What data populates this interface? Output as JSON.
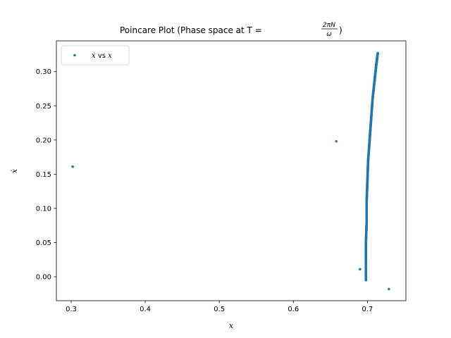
{
  "chart_data": {
    "type": "scatter",
    "title_prefix": "Poincare Plot (Phase space at T = ",
    "title_frac_num": "2πN",
    "title_frac_den": "ω",
    "title_suffix": ")",
    "xlabel": "x",
    "ylabel": "ẋ",
    "xlim": [
      0.28,
      0.752
    ],
    "ylim": [
      -0.035,
      0.345
    ],
    "x_ticks": [
      0.3,
      0.4,
      0.5,
      0.6,
      0.7
    ],
    "x_tick_labels": [
      "0.3",
      "0.4",
      "0.5",
      "0.6",
      "0.7"
    ],
    "y_ticks": [
      0.0,
      0.05,
      0.1,
      0.15,
      0.2,
      0.25,
      0.3
    ],
    "y_tick_labels": [
      "0.00",
      "0.05",
      "0.10",
      "0.15",
      "0.20",
      "0.25",
      "0.30"
    ],
    "grid": false,
    "legend_position": "top-left",
    "series": [
      {
        "name_math": "ẋ",
        "name_mid": " vs ",
        "name_math2": "x",
        "color": "#1f77b4",
        "outliers": [
          {
            "x": 0.302,
            "y": 0.161
          },
          {
            "x": 0.658,
            "y": 0.198
          },
          {
            "x": 0.69,
            "y": 0.011
          },
          {
            "x": 0.729,
            "y": -0.018
          }
        ],
        "curve": [
          {
            "x": 0.698,
            "y": -0.005
          },
          {
            "x": 0.698,
            "y": 0.02
          },
          {
            "x": 0.698,
            "y": 0.05
          },
          {
            "x": 0.699,
            "y": 0.08
          },
          {
            "x": 0.699,
            "y": 0.11
          },
          {
            "x": 0.7,
            "y": 0.14
          },
          {
            "x": 0.701,
            "y": 0.17
          },
          {
            "x": 0.703,
            "y": 0.2
          },
          {
            "x": 0.705,
            "y": 0.23
          },
          {
            "x": 0.707,
            "y": 0.26
          },
          {
            "x": 0.71,
            "y": 0.29
          },
          {
            "x": 0.712,
            "y": 0.31
          },
          {
            "x": 0.714,
            "y": 0.327
          }
        ]
      }
    ]
  }
}
